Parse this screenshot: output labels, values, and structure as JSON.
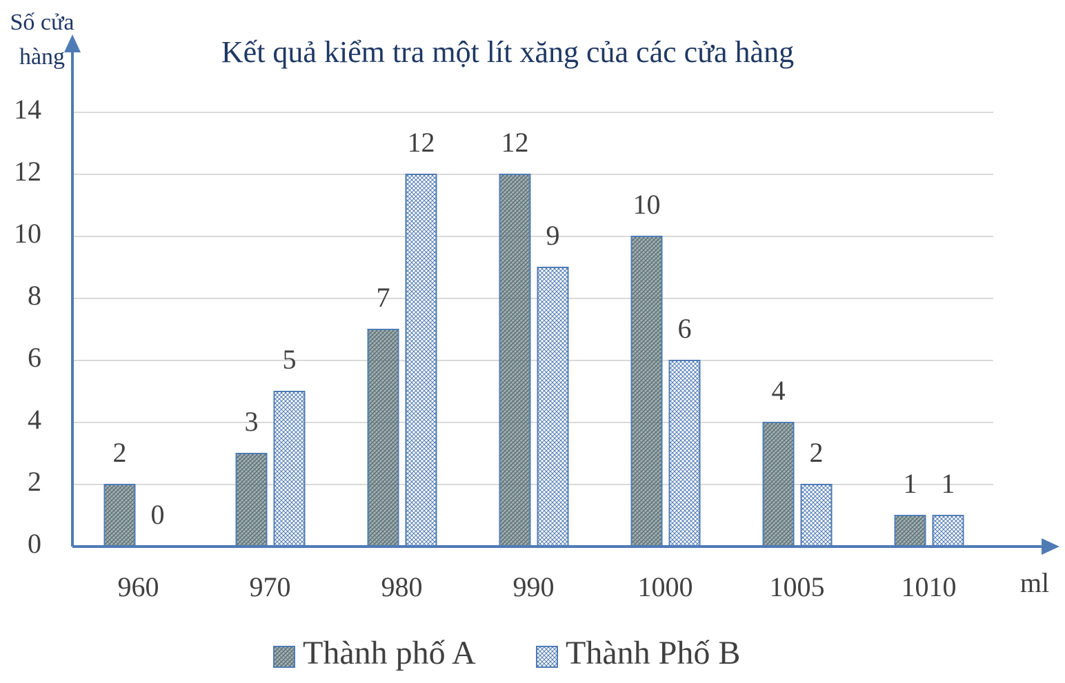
{
  "chart_data": {
    "type": "bar",
    "title": "Kết quả kiểm tra một lít xăng của các cửa hàng",
    "y_label": "Số cửa hàng",
    "x_label": "ml",
    "categories": [
      "960",
      "970",
      "980",
      "990",
      "1000",
      "1005",
      "1010"
    ],
    "series": [
      {
        "name": "Thành phố A",
        "color": "#5f7478",
        "values": [
          2,
          3,
          7,
          12,
          10,
          4,
          1
        ]
      },
      {
        "name": "Thành Phố B",
        "color": "#4f7bb5",
        "values": [
          0,
          5,
          12,
          9,
          6,
          2,
          1
        ]
      }
    ],
    "ylim": [
      0,
      14
    ],
    "yticks": [
      0,
      2,
      4,
      6,
      8,
      10,
      12,
      14
    ],
    "grid": true,
    "legend": "bottom"
  }
}
